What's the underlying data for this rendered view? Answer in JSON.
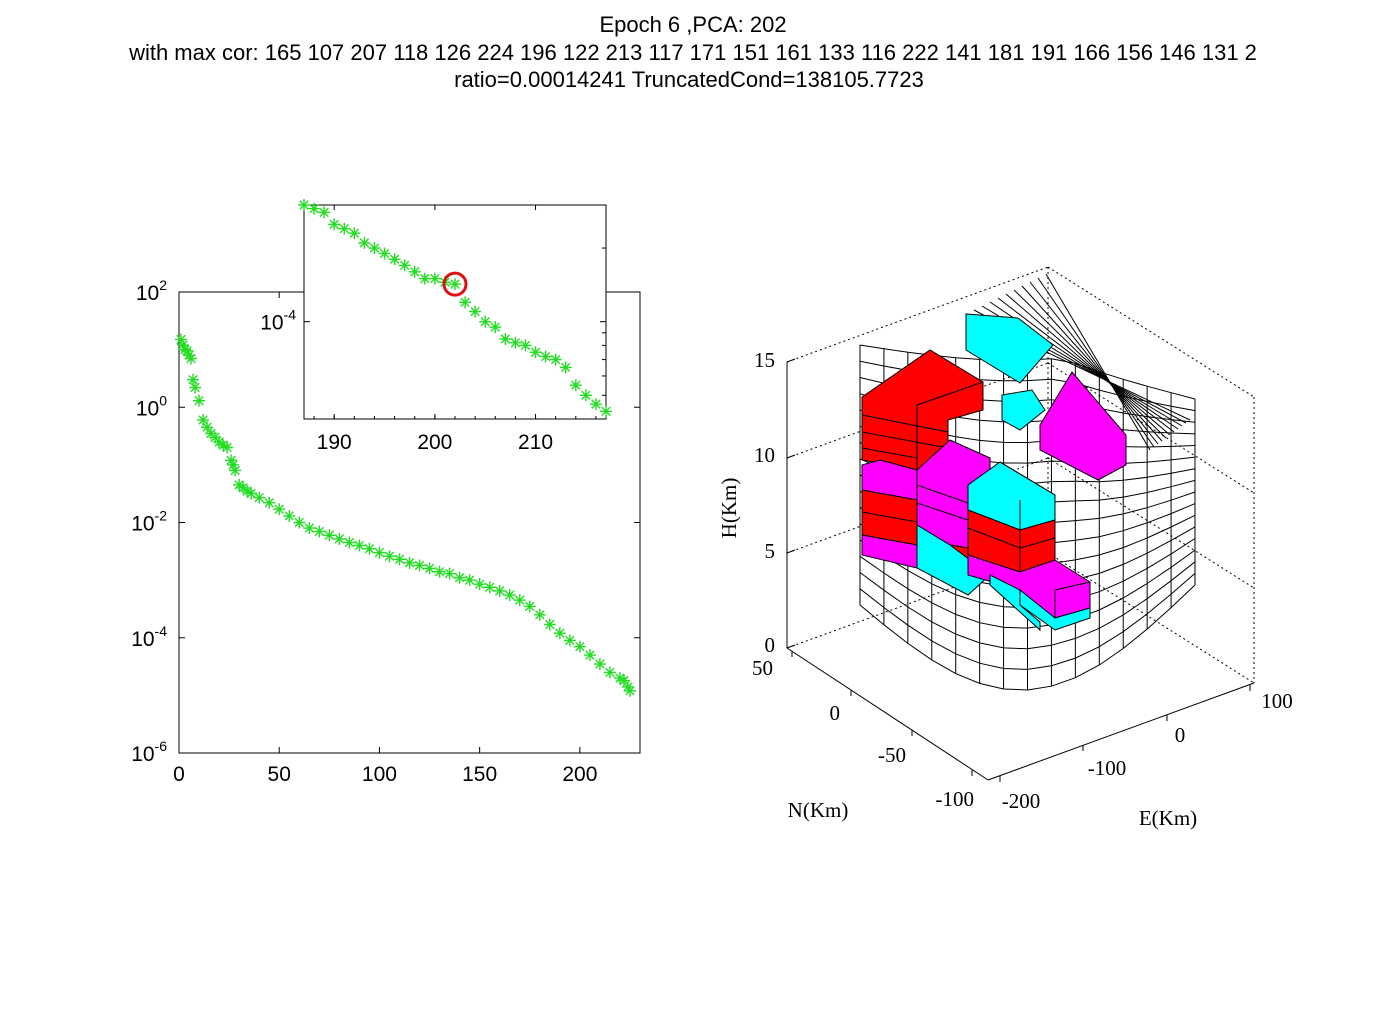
{
  "figure": {
    "title_line1": "Epoch 6 ,PCA: 202",
    "title_line2": "with max cor: 165  107  207  118  126  224  196  122  213  117  171  151  161  133  116  222  141  181  191  166  156  146  131  2",
    "title_line3": "ratio=0.00014241     TruncatedCond=138105.7723"
  },
  "colors": {
    "marker": "#22dd22",
    "highlight": "#dd1111",
    "red": "#ff0000",
    "cyan": "#00ffff",
    "magenta": "#ff00ff"
  },
  "chart_data": [
    {
      "type": "scatter",
      "marker": "asterisk",
      "yscale": "log",
      "xlim": [
        0,
        230
      ],
      "xticks": [
        "0",
        "50",
        "100",
        "150",
        "200"
      ],
      "yticks": [
        {
          "base": "10",
          "exp": "2"
        },
        {
          "base": "10",
          "exp": "0"
        },
        {
          "base": "10",
          "exp": "-2"
        },
        {
          "base": "10",
          "exp": "-4"
        },
        {
          "base": "10",
          "exp": "-6"
        }
      ],
      "ylim": [
        1e-06,
        100
      ],
      "series": [
        {
          "x": [
            1,
            2,
            3,
            4,
            5,
            6,
            7,
            8,
            10,
            12,
            14,
            16,
            18,
            20,
            22,
            24,
            26,
            27,
            28,
            30,
            32,
            34,
            36,
            40,
            45,
            50,
            55,
            60,
            65,
            70,
            75,
            80,
            85,
            90,
            95,
            100,
            105,
            110,
            115,
            120,
            125,
            130,
            135,
            140,
            145,
            150,
            155,
            160,
            165,
            170,
            175,
            180,
            185,
            190,
            195,
            200,
            205,
            210,
            215,
            220,
            222,
            224,
            225
          ],
          "y": [
            15,
            12,
            10,
            9.5,
            8,
            7,
            3,
            2.2,
            1.3,
            0.6,
            0.45,
            0.35,
            0.3,
            0.25,
            0.22,
            0.2,
            0.12,
            0.1,
            0.08,
            0.045,
            0.04,
            0.035,
            0.032,
            0.027,
            0.022,
            0.017,
            0.013,
            0.01,
            0.008,
            0.007,
            0.006,
            0.0052,
            0.0045,
            0.004,
            0.0035,
            0.003,
            0.0026,
            0.0023,
            0.002,
            0.0018,
            0.0016,
            0.0014,
            0.0013,
            0.0011,
            0.001,
            0.00085,
            0.00075,
            0.00065,
            0.00055,
            0.00045,
            0.00035,
            0.00025,
            0.00017,
            0.00012,
            9e-05,
            7e-05,
            5e-05,
            3.5e-05,
            2.5e-05,
            2e-05,
            1.8e-05,
            1.4e-05,
            1.2e-05
          ]
        }
      ]
    },
    {
      "type": "scatter",
      "marker": "asterisk",
      "yscale": "log",
      "xlim": [
        187,
        217
      ],
      "xticks": [
        "190",
        "200",
        "210"
      ],
      "yticks": [
        {
          "base": "10",
          "exp": "-4"
        }
      ],
      "ylim": [
        4e-05,
        0.0003
      ],
      "highlight": {
        "x": 202,
        "y": 0.00014241
      },
      "series": [
        {
          "x": [
            187,
            188,
            189,
            190,
            191,
            192,
            193,
            194,
            195,
            196,
            197,
            198,
            199,
            200,
            201,
            202,
            203,
            204,
            205,
            206,
            207,
            208,
            209,
            210,
            211,
            212,
            213,
            214,
            215,
            216,
            217
          ],
          "y": [
            0.0003,
            0.00029,
            0.00028,
            0.00025,
            0.00024,
            0.00023,
            0.00021,
            0.0002,
            0.00019,
            0.00018,
            0.00017,
            0.00016,
            0.00015,
            0.00015,
            0.000145,
            0.00014241,
            0.00012,
            0.00011,
            0.0001,
            9.5e-05,
            8.5e-05,
            8.2e-05,
            8e-05,
            7.5e-05,
            7.2e-05,
            7e-05,
            6.5e-05,
            5.5e-05,
            5e-05,
            4.6e-05,
            4.3e-05
          ]
        }
      ]
    },
    {
      "type": "3d-block-model",
      "zlabel": "H(Km)",
      "ylabel": "N(Km)",
      "xlabel": "E(Km)",
      "zticks": [
        "0",
        "5",
        "10",
        "15"
      ],
      "nticks": [
        "50",
        "0",
        "-50",
        "-100"
      ],
      "eticks": [
        "-200",
        "-100",
        "0",
        "100"
      ]
    }
  ]
}
